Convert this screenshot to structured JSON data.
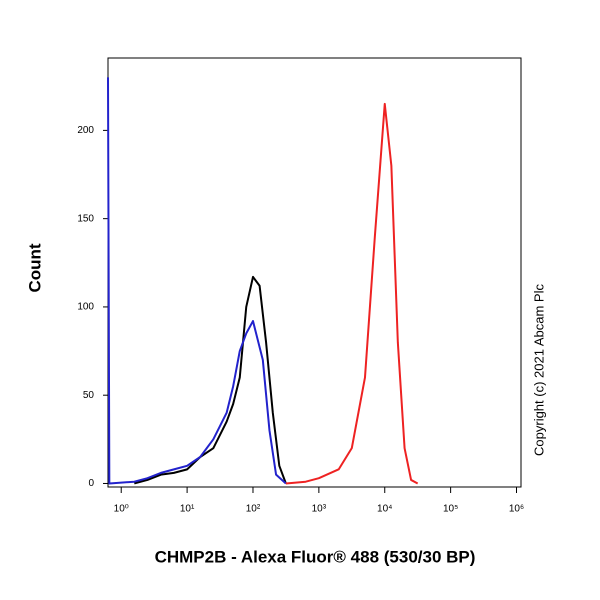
{
  "chart_data": {
    "type": "line",
    "x_label": "CHMP2B - Alexa Fluor® 488 (530/30 BP)",
    "y_label": "Count",
    "annotation": "Copyright (c) 2021 Abcam Plc",
    "xscale": "log",
    "xlim": [
      0.63,
      1170000
    ],
    "ylim": [
      -2,
      241
    ],
    "xticks": [
      {
        "value": 1,
        "label": "10⁰"
      },
      {
        "value": 10,
        "label": "10¹"
      },
      {
        "value": 100,
        "label": "10²"
      },
      {
        "value": 1000,
        "label": "10³"
      },
      {
        "value": 10000,
        "label": "10⁴"
      },
      {
        "value": 100000,
        "label": "10⁵"
      },
      {
        "value": 1000000,
        "label": "10⁶"
      }
    ],
    "yticks": [
      0,
      50,
      100,
      150,
      200
    ],
    "series": [
      {
        "color": "#000000",
        "x": [
          1.58,
          2.5,
          4,
          6.3,
          10,
          15.8,
          25,
          39.8,
          50,
          63,
          79,
          100,
          126,
          158,
          200,
          251,
          316
        ],
        "values": [
          0,
          2,
          5,
          6,
          8,
          15,
          20,
          35,
          45,
          60,
          100,
          117,
          112,
          80,
          40,
          10,
          0
        ]
      },
      {
        "color": "#2222cc",
        "x": [
          0.63,
          0.66,
          1.58,
          2.5,
          4,
          6.3,
          10,
          15.8,
          25,
          39.8,
          50,
          63,
          79,
          100,
          141,
          178,
          224,
          316
        ],
        "values": [
          230,
          0,
          1,
          3,
          6,
          8,
          10,
          15,
          25,
          40,
          55,
          75,
          85,
          92,
          70,
          30,
          5,
          0
        ]
      },
      {
        "color": "#ee2222",
        "x": [
          316,
          631,
          1000,
          2000,
          3160,
          5010,
          7080,
          10000,
          12600,
          15800,
          20000,
          25100,
          31600
        ],
        "values": [
          0,
          1,
          3,
          8,
          20,
          60,
          140,
          215,
          180,
          80,
          20,
          2,
          0
        ]
      }
    ]
  }
}
